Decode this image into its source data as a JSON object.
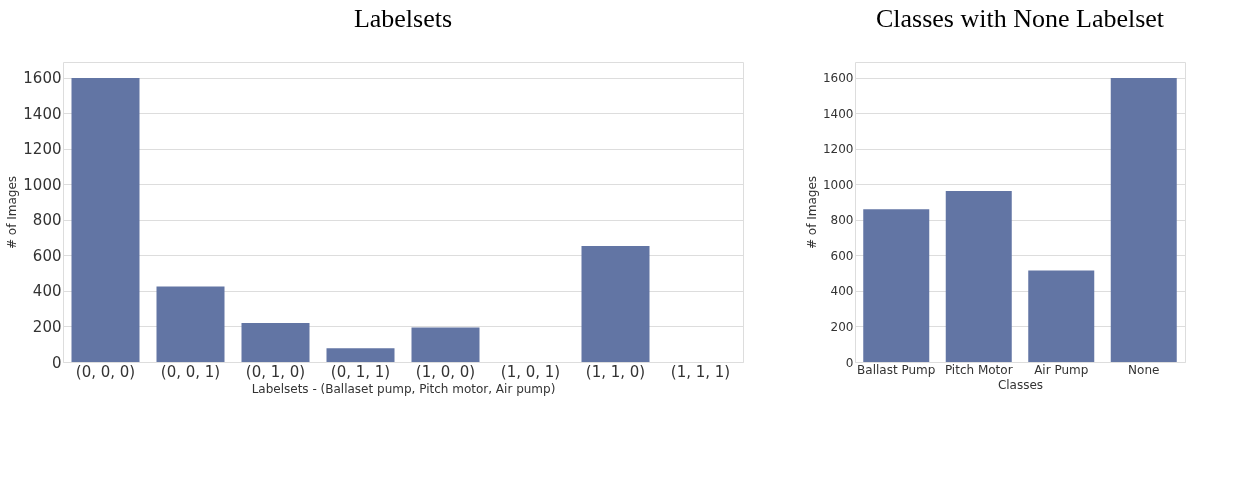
{
  "chart_data": [
    {
      "type": "bar",
      "title": "Labelsets",
      "xlabel": "Labelsets - (Ballaset pump, Pitch motor, Air pump)",
      "ylabel": "# of Images",
      "categories": [
        "(0, 0, 0)",
        "(0, 0, 1)",
        "(0, 1, 0)",
        "(0, 1, 1)",
        "(1, 0, 0)",
        "(1, 0, 1)",
        "(1, 1, 0)",
        "(1, 1, 1)"
      ],
      "values": [
        1600,
        426,
        219,
        77,
        194,
        0,
        653,
        0
      ],
      "color": "#6275a4",
      "ylim": [
        0,
        1690
      ],
      "yticks": [
        0,
        200,
        400,
        600,
        800,
        1000,
        1200,
        1400,
        1600
      ],
      "grid": "y"
    },
    {
      "type": "bar",
      "title": "Classes with None Labelset",
      "xlabel": "Classes",
      "ylabel": "# of Images",
      "categories": [
        "Ballast Pump",
        "Pitch Motor",
        "Air Pump",
        "None"
      ],
      "values": [
        860,
        964,
        516,
        1600
      ],
      "color": "#6275a4",
      "ylim": [
        0,
        1690
      ],
      "yticks": [
        0,
        200,
        400,
        600,
        800,
        1000,
        1200,
        1400,
        1600
      ],
      "grid": "y"
    }
  ]
}
